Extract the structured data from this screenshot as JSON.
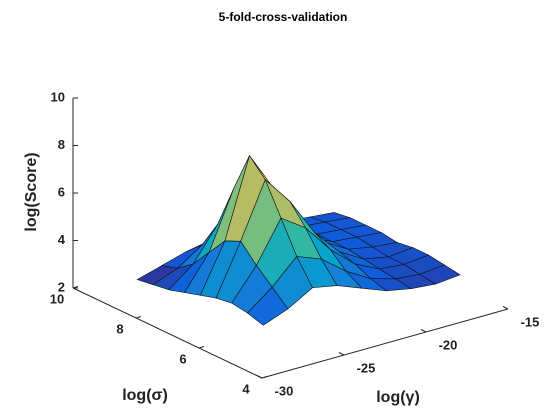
{
  "chart_data": {
    "type": "surface",
    "title": "5-fold-cross-validation",
    "xlabel": "log(γ)",
    "ylabel": "log(σ)",
    "zlabel": "log(Score)",
    "x": [
      -28,
      -26.5,
      -25,
      -23.5,
      -22,
      -20.5,
      -19,
      -17.5,
      -16
    ],
    "y": [
      5,
      5.5,
      6,
      6.5,
      7,
      7.5,
      8,
      8.5,
      9
    ],
    "z": [
      [
        3.2,
        3.6,
        4.2,
        4.0,
        3.6,
        3.2,
        3.0,
        2.9,
        3.0
      ],
      [
        3.4,
        4.2,
        5.2,
        4.8,
        4.0,
        3.4,
        3.1,
        3.0,
        3.1
      ],
      [
        3.5,
        4.8,
        6.5,
        5.8,
        4.6,
        3.7,
        3.2,
        3.1,
        3.2
      ],
      [
        3.4,
        5.5,
        7.8,
        6.6,
        5.0,
        3.9,
        3.3,
        3.1,
        3.2
      ],
      [
        3.2,
        5.2,
        8.5,
        6.8,
        5.2,
        4.0,
        3.4,
        3.2,
        3.1
      ],
      [
        3.0,
        4.4,
        6.8,
        5.9,
        4.8,
        3.9,
        3.4,
        3.3,
        3.2
      ],
      [
        2.8,
        3.6,
        5.0,
        4.8,
        4.2,
        3.7,
        3.4,
        3.3,
        3.2
      ],
      [
        2.7,
        3.1,
        3.8,
        3.9,
        3.7,
        3.5,
        3.4,
        3.3,
        3.2
      ],
      [
        2.6,
        2.9,
        3.2,
        3.4,
        3.4,
        3.4,
        3.3,
        3.2,
        3.1
      ]
    ],
    "xlim": [
      -30,
      -15
    ],
    "xticks": [
      -30,
      -25,
      -20,
      -15
    ],
    "ylim": [
      4,
      10
    ],
    "yticks": [
      4,
      6,
      8,
      10
    ],
    "zlim": [
      2,
      10
    ],
    "zticks": [
      2,
      4,
      6,
      8,
      10
    ],
    "colormap": [
      "#352a87",
      "#0f5cdd",
      "#1481d6",
      "#06a4ca",
      "#2eb7a4",
      "#87bf77",
      "#d1bb59",
      "#fec832",
      "#f9fb0e"
    ],
    "edgecolor": "#111111"
  }
}
